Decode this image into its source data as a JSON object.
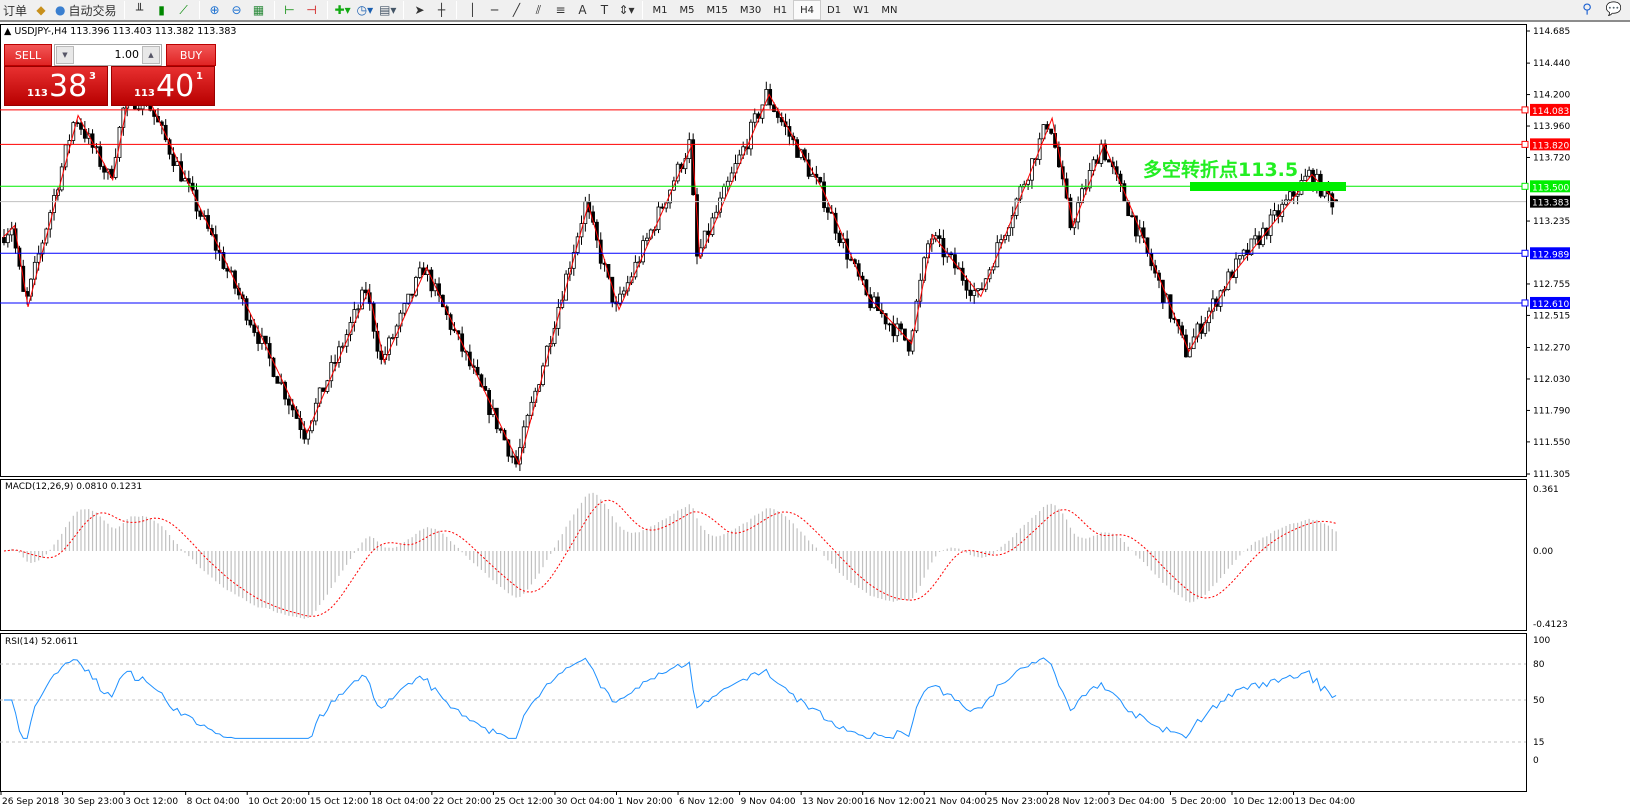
{
  "toolbar": {
    "left_items": [
      {
        "label": "订单",
        "icon": "new-order-icon"
      },
      {
        "label": "",
        "icon": "metaeditor-icon"
      },
      {
        "label": "自动交易",
        "icon": "autotrading-icon"
      }
    ],
    "chart_icons": [
      "bar-chart-icon",
      "candlestick-icon",
      "line-chart-icon",
      "zoom-in-icon",
      "zoom-out-icon",
      "tile-windows-icon",
      "chart-shift-icon",
      "autoscroll-icon",
      "indicators-icon",
      "periods-icon",
      "templates-icon",
      "cursor-icon",
      "crosshair-icon",
      "vertical-line-icon",
      "horizontal-line-icon",
      "trendline-icon",
      "equidistant-channel-icon",
      "fibonacci-icon",
      "text-icon",
      "text-label-icon",
      "arrows-icon"
    ],
    "timeframes": [
      "M1",
      "M5",
      "M15",
      "M30",
      "H1",
      "H4",
      "D1",
      "W1",
      "MN"
    ],
    "active_timeframe": "H4"
  },
  "chart": {
    "header": "USDJPY-,H4  113.396 113.403 113.382 113.383",
    "symbol": "USDJPY-",
    "timeframe": "H4",
    "ohlc": {
      "open": 113.396,
      "high": 113.403,
      "low": 113.382,
      "close": 113.383
    },
    "trade": {
      "sell_label": "SELL",
      "buy_label": "BUY",
      "lot": "1.00",
      "sell_big": "113",
      "sell_main": "38",
      "sell_pip": "3",
      "buy_big": "113",
      "buy_main": "40",
      "buy_pip": "1"
    },
    "annotation": "多空转折点113.5",
    "annotation_color": "#22ee22",
    "price_scale": {
      "max": 114.685,
      "min": 111.305,
      "ticks": [
        "114.685",
        "114.440",
        "114.200",
        "113.960",
        "113.720",
        "113.235",
        "112.755",
        "112.515",
        "112.270",
        "112.030",
        "111.790",
        "111.550",
        "111.305"
      ]
    },
    "hlines": [
      {
        "price": "114.083",
        "color": "#ff0000"
      },
      {
        "price": "113.820",
        "color": "#ff0000"
      },
      {
        "price": "113.500",
        "color": "#00ee00"
      },
      {
        "price": "113.383",
        "color": "#000000",
        "bid": true
      },
      {
        "price": "112.989",
        "color": "#0000ff"
      },
      {
        "price": "112.610",
        "color": "#0000ff"
      }
    ],
    "zigzag": [
      [
        0,
        113.11
      ],
      [
        3,
        113.2
      ],
      [
        6.5,
        112.58
      ],
      [
        19.5,
        114.04
      ],
      [
        28.5,
        113.55
      ],
      [
        32.5,
        114.16
      ],
      [
        38,
        114.16
      ],
      [
        49,
        113.47
      ],
      [
        79,
        111.62
      ],
      [
        95,
        112.71
      ],
      [
        99,
        112.16
      ],
      [
        110,
        112.88
      ],
      [
        134,
        111.38
      ],
      [
        152,
        113.36
      ],
      [
        160,
        112.56
      ],
      [
        179,
        113.82
      ],
      [
        181,
        112.95
      ],
      [
        199,
        114.2
      ],
      [
        213,
        113.47
      ],
      [
        225,
        112.65
      ],
      [
        236,
        112.3
      ],
      [
        241.5,
        113.13
      ],
      [
        254,
        112.66
      ],
      [
        272.5,
        114.02
      ],
      [
        278,
        113.2
      ],
      [
        286,
        113.82
      ],
      [
        293.5,
        113.3
      ],
      [
        308,
        112.24
      ],
      [
        320,
        112.85
      ],
      [
        340,
        113.59
      ],
      [
        346,
        113.39
      ]
    ],
    "time_labels": [
      "26 Sep 2018",
      "30 Sep 23:00",
      "3 Oct 12:00",
      "8 Oct 04:00",
      "10 Oct 20:00",
      "15 Oct 12:00",
      "18 Oct 04:00",
      "22 Oct 20:00",
      "25 Oct 12:00",
      "30 Oct 04:00",
      "1 Nov 20:00",
      "6 Nov 12:00",
      "9 Nov 04:00",
      "13 Nov 20:00",
      "16 Nov 12:00",
      "21 Nov 04:00",
      "25 Nov 23:00",
      "28 Nov 12:00",
      "3 Dec 04:00",
      "5 Dec 20:00",
      "10 Dec 12:00",
      "13 Dec 04:00"
    ]
  },
  "macd": {
    "label": "MACD(12,26,9) 0.0810 0.1231",
    "scale": [
      "0.361",
      "0.00",
      "-0.4123"
    ],
    "main_color": "#c0c0c0",
    "signal_color": "#ff0000"
  },
  "rsi": {
    "label": "RSI(14) 52.0611",
    "scale": [
      "100",
      "80",
      "50",
      "15",
      "0"
    ],
    "levels": [
      80,
      50,
      15
    ],
    "color": "#1e90ff"
  }
}
